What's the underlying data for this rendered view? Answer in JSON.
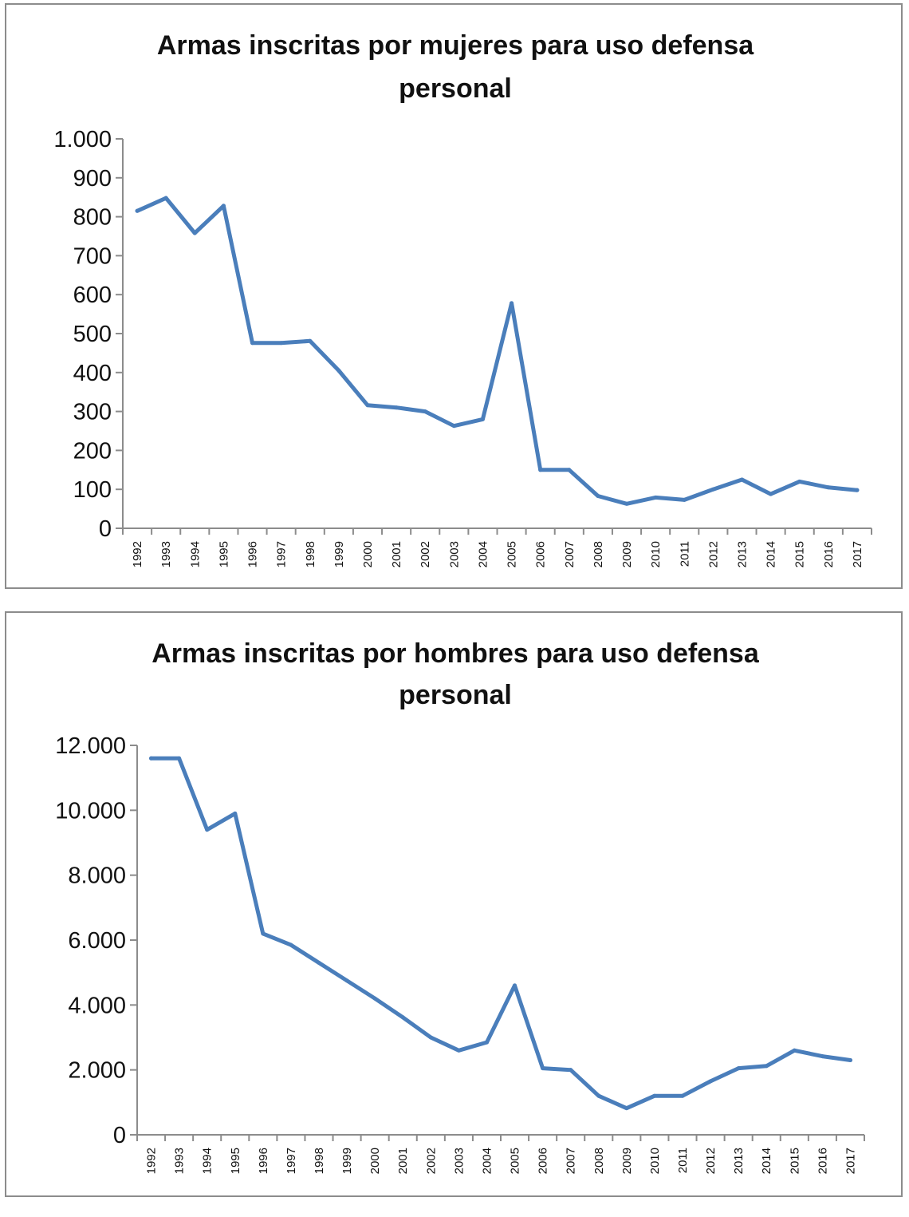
{
  "chart_data": [
    {
      "type": "line",
      "title": [
        "Armas inscritas por mujeres para uso defensa",
        "personal"
      ],
      "xlabel": "",
      "ylabel": "",
      "categories": [
        "1992",
        "1993",
        "1994",
        "1995",
        "1996",
        "1997",
        "1998",
        "1999",
        "2000",
        "2001",
        "2002",
        "2003",
        "2004",
        "2005",
        "2006",
        "2007",
        "2008",
        "2009",
        "2010",
        "2011",
        "2012",
        "2013",
        "2014",
        "2015",
        "2016",
        "2017"
      ],
      "yticks": [
        0,
        100,
        200,
        300,
        400,
        500,
        600,
        700,
        800,
        900,
        1000
      ],
      "ytick_labels": [
        "0",
        "100",
        "200",
        "300",
        "400",
        "500",
        "600",
        "700",
        "800",
        "900",
        "1.000"
      ],
      "ylim": [
        0,
        1000
      ],
      "grid": false,
      "legend": "none",
      "series": [
        {
          "values": [
            815,
            848,
            758,
            828,
            476,
            476,
            481,
            405,
            316,
            310,
            300,
            263,
            280,
            578,
            150,
            150,
            83,
            63,
            79,
            73,
            100,
            125,
            88,
            120,
            105,
            98
          ],
          "color": "#4a7ebb"
        }
      ]
    },
    {
      "type": "line",
      "title": [
        "Armas inscritas por hombres para uso defensa",
        "personal"
      ],
      "xlabel": "",
      "ylabel": "",
      "categories": [
        "1992",
        "1993",
        "1994",
        "1995",
        "1996",
        "1997",
        "1998",
        "1999",
        "2000",
        "2001",
        "2002",
        "2003",
        "2004",
        "2005",
        "2006",
        "2007",
        "2008",
        "2009",
        "2010",
        "2011",
        "2012",
        "2013",
        "2014",
        "2015",
        "2016",
        "2017"
      ],
      "yticks": [
        0,
        2000,
        4000,
        6000,
        8000,
        10000,
        12000
      ],
      "ytick_labels": [
        "0",
        "2.000",
        "4.000",
        "6.000",
        "8.000",
        "10.000",
        "12.000"
      ],
      "ylim": [
        0,
        12000
      ],
      "grid": false,
      "legend": "none",
      "series": [
        {
          "values": [
            11600,
            11600,
            9400,
            9900,
            6200,
            5850,
            5300,
            4750,
            4200,
            3620,
            3000,
            2600,
            2850,
            4600,
            2050,
            2000,
            1200,
            820,
            1200,
            1200,
            1650,
            2050,
            2120,
            2600,
            2420,
            2300
          ],
          "color": "#4a7ebb"
        }
      ]
    }
  ]
}
